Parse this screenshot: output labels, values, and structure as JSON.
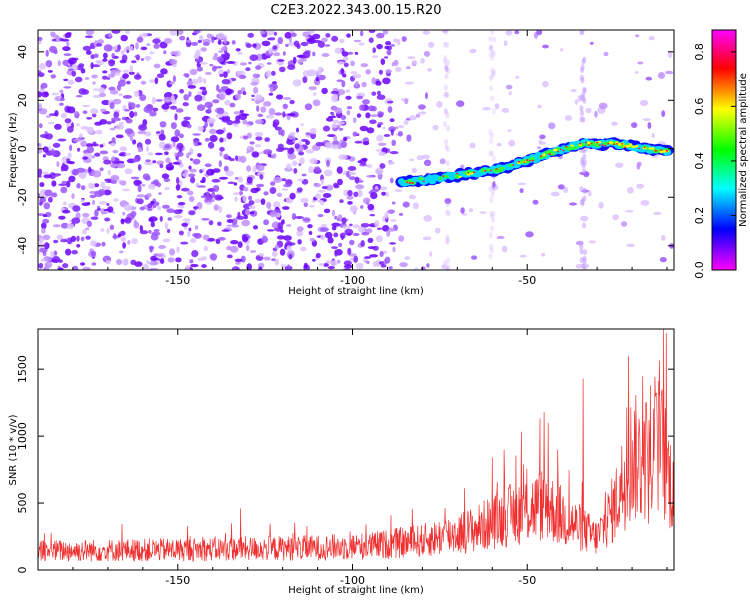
{
  "title": "C2E3.2022.343.00.15.R20",
  "chart_data": [
    {
      "type": "heatmap",
      "xlabel": "Height of straight line (km)",
      "ylabel": "Frequency (Hz)",
      "xlim": [
        -190,
        -8
      ],
      "ylim": [
        -50,
        49
      ],
      "x_ticks": [
        -150,
        -100,
        -50
      ],
      "y_ticks": [
        -40,
        -20,
        0,
        20,
        40
      ],
      "colorbar": {
        "label": "Normalized spectral amplitude",
        "range": [
          0,
          0.88
        ],
        "ticks": [
          0.0,
          0.2,
          0.4,
          0.6,
          0.8
        ],
        "colormap": [
          "#ff00ff",
          "#0000ff",
          "#00ffff",
          "#00ff00",
          "#ffff00",
          "#ff0000",
          "#ff00ff"
        ]
      },
      "noise_color": "#7a1cff",
      "signal_track": [
        {
          "x": -86,
          "y": -14
        },
        {
          "x": -80,
          "y": -13
        },
        {
          "x": -70,
          "y": -11
        },
        {
          "x": -60,
          "y": -9
        },
        {
          "x": -50,
          "y": -5
        },
        {
          "x": -42,
          "y": -1
        },
        {
          "x": -34,
          "y": 2
        },
        {
          "x": -25,
          "y": 2
        },
        {
          "x": -18,
          "y": 0.5
        },
        {
          "x": -10,
          "y": -1
        }
      ]
    },
    {
      "type": "line",
      "xlabel": "Height of straight line (km)",
      "ylabel": "SNR (10 * v/v)",
      "xlim": [
        -190,
        -8
      ],
      "ylim": [
        0,
        1800
      ],
      "x_ticks": [
        -150,
        -100,
        -50
      ],
      "y_ticks": [
        0,
        500,
        1000,
        1500
      ],
      "line_color": "#f03030",
      "envelope": [
        {
          "x": -190,
          "y": 150
        },
        {
          "x": -150,
          "y": 160
        },
        {
          "x": -110,
          "y": 175
        },
        {
          "x": -95,
          "y": 190
        },
        {
          "x": -80,
          "y": 230
        },
        {
          "x": -65,
          "y": 320
        },
        {
          "x": -55,
          "y": 430
        },
        {
          "x": -45,
          "y": 520
        },
        {
          "x": -38,
          "y": 380
        },
        {
          "x": -30,
          "y": 250
        },
        {
          "x": -25,
          "y": 500
        },
        {
          "x": -20,
          "y": 900
        },
        {
          "x": -15,
          "y": 800
        },
        {
          "x": -12,
          "y": 1000
        },
        {
          "x": -9,
          "y": 700
        }
      ],
      "peaks": [
        {
          "x": -132,
          "y": 460
        },
        {
          "x": -44,
          "y": 1100
        },
        {
          "x": -34,
          "y": 1430
        },
        {
          "x": -21,
          "y": 1600
        },
        {
          "x": -16,
          "y": 1250
        },
        {
          "x": -13,
          "y": 1320
        },
        {
          "x": -11,
          "y": 1800
        }
      ]
    }
  ]
}
